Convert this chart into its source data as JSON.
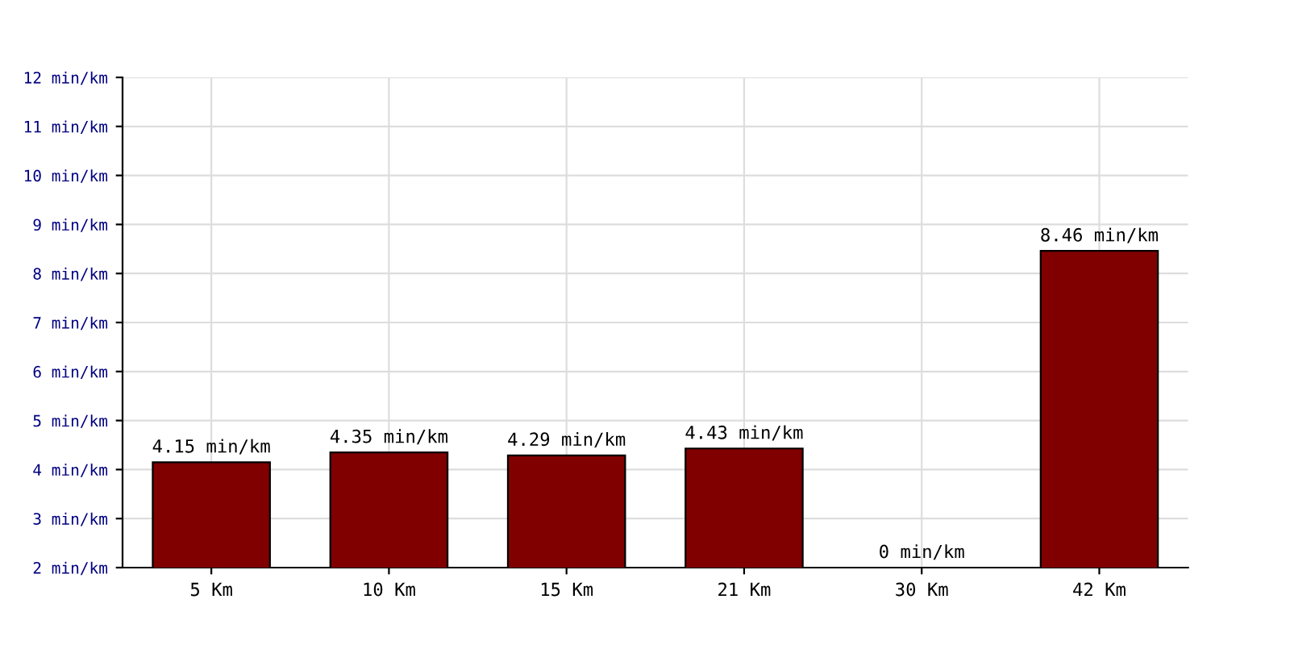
{
  "chart_data": {
    "type": "bar",
    "categories": [
      "5 Km",
      "10 Km",
      "15 Km",
      "21 Km",
      "30 Km",
      "42 Km"
    ],
    "values": [
      4.15,
      4.35,
      4.29,
      4.43,
      null,
      8.46
    ],
    "value_labels": [
      "4.15 min/km",
      "4.35 min/km",
      "4.29 min/km",
      "4.43 min/km",
      "0 min/km",
      "8.46 min/km"
    ],
    "color": "#800000",
    "ylim": [
      2,
      12
    ],
    "yticks": [
      {
        "value": 2,
        "label": "2 min/km"
      },
      {
        "value": 3,
        "label": "3 min/km"
      },
      {
        "value": 4,
        "label": "4 min/km"
      },
      {
        "value": 5,
        "label": "5 min/km"
      },
      {
        "value": 6,
        "label": "6 min/km"
      },
      {
        "value": 7,
        "label": "7 min/km"
      },
      {
        "value": 8,
        "label": "8 min/km"
      },
      {
        "value": 9,
        "label": "9 min/km"
      },
      {
        "value": 10,
        "label": "10 min/km"
      },
      {
        "value": 11,
        "label": "11 min/km"
      },
      {
        "value": 12,
        "label": "12 min/km"
      }
    ],
    "grid": true
  }
}
